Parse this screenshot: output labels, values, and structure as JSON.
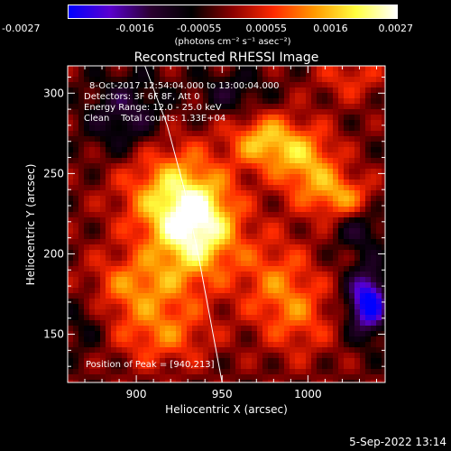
{
  "chart_data": {
    "type": "heatmap",
    "title": "Reconstructed RHESSI Image",
    "xlabel": "Heliocentric X (arcsec)",
    "ylabel": "Heliocentric Y (arcsec)",
    "xlim": [
      860,
      1045
    ],
    "ylim": [
      120,
      317
    ],
    "x_ticks": [
      "900",
      "950",
      "1000"
    ],
    "x_tick_values": [
      900,
      950,
      1000
    ],
    "y_ticks": [
      "150",
      "200",
      "250",
      "300"
    ],
    "y_tick_values": [
      150,
      200,
      250,
      300
    ],
    "colorbar": {
      "ticks": [
        "-0.0027",
        "-0.0016",
        "-0.00055",
        "0.00055",
        "0.0016",
        "0.0027"
      ],
      "tick_values": [
        -0.0027,
        -0.0016,
        -0.00055,
        0.00055,
        0.0016,
        0.0027
      ],
      "range": [
        -0.0027,
        0.0027
      ],
      "units": "(photons cm⁻² s⁻¹ asec⁻²)",
      "colormap": [
        "#0000ff",
        "#5a00d0",
        "#2a0030",
        "#000000",
        "#8b0000",
        "#ff2a00",
        "#ff9a00",
        "#ffff40",
        "#ffffff"
      ]
    },
    "annotations": {
      "time": "8-Oct-2017 12:54:04.000 to 13:00:04.000",
      "detectors": "Detectors: 3F 6F 8F, Att 0",
      "energy": "Energy Range: 12.0 - 25.0 keV",
      "clean": "Clean    Total counts: 1.33E+04",
      "peak": "Position of Peak = [940,213]"
    },
    "peak": [
      940,
      213
    ],
    "sources": [
      {
        "x": 935,
        "y": 218,
        "amp": 0.0027,
        "sx": 17,
        "sy": 22
      },
      {
        "x": 915,
        "y": 240,
        "amp": 0.0013,
        "sx": 20,
        "sy": 25
      },
      {
        "x": 975,
        "y": 270,
        "amp": 0.0018,
        "sx": 14,
        "sy": 12
      },
      {
        "x": 1000,
        "y": 255,
        "amp": 0.0016,
        "sx": 13,
        "sy": 16
      },
      {
        "x": 1020,
        "y": 235,
        "amp": 0.0014,
        "sx": 12,
        "sy": 10
      },
      {
        "x": 900,
        "y": 180,
        "amp": 0.0013,
        "sx": 22,
        "sy": 14
      },
      {
        "x": 915,
        "y": 150,
        "amp": 0.0012,
        "sx": 20,
        "sy": 14
      },
      {
        "x": 980,
        "y": 185,
        "amp": 0.001,
        "sx": 16,
        "sy": 20
      },
      {
        "x": 995,
        "y": 160,
        "amp": 0.0009,
        "sx": 15,
        "sy": 18
      },
      {
        "x": 1025,
        "y": 310,
        "amp": 0.0008,
        "sx": 14,
        "sy": 10
      },
      {
        "x": 1035,
        "y": 170,
        "amp": -0.0027,
        "sx": 8,
        "sy": 14
      },
      {
        "x": 895,
        "y": 285,
        "amp": -0.0012,
        "sx": 16,
        "sy": 18
      },
      {
        "x": 955,
        "y": 300,
        "amp": -0.0008,
        "sx": 14,
        "sy": 10
      },
      {
        "x": 1030,
        "y": 215,
        "amp": -0.0009,
        "sx": 10,
        "sy": 10
      },
      {
        "x": 870,
        "y": 160,
        "amp": -0.0006,
        "sx": 10,
        "sy": 16
      }
    ],
    "limb": [
      [
        905,
        317
      ],
      [
        918,
        280
      ],
      [
        928,
        240
      ],
      [
        936,
        200
      ],
      [
        943,
        160
      ],
      [
        950,
        120
      ]
    ]
  },
  "footer": {
    "date": "5-Sep-2022 13:14"
  }
}
